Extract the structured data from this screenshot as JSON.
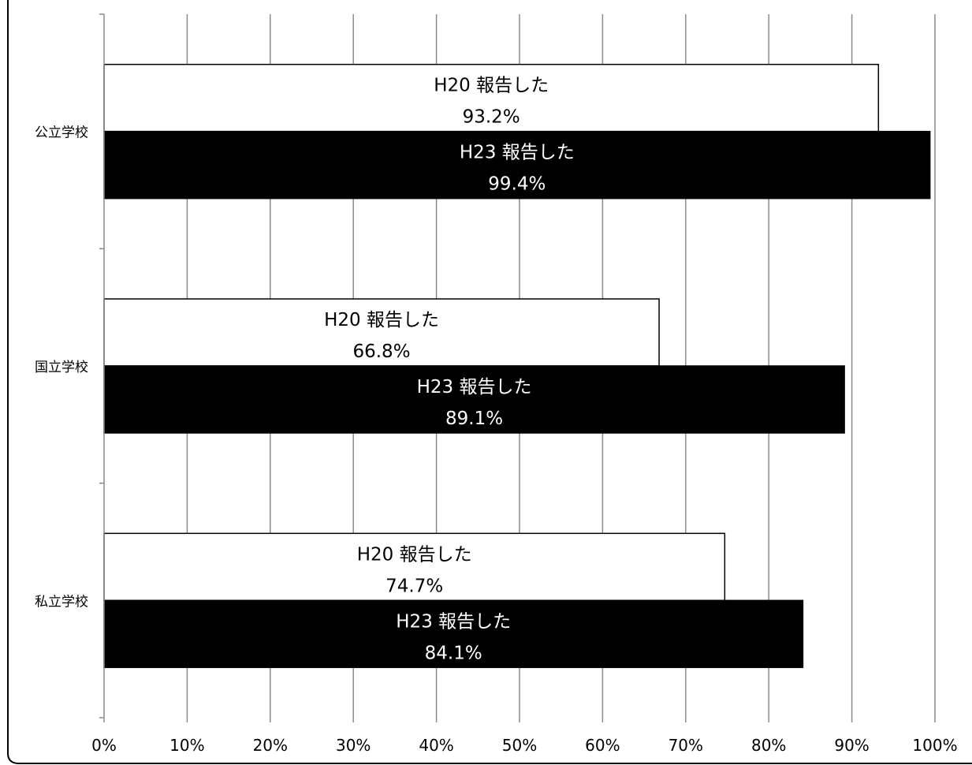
{
  "chart_data": {
    "type": "bar",
    "orientation": "horizontal",
    "categories": [
      "公立学校",
      "国立学校",
      "私立学校"
    ],
    "series": [
      {
        "name": "H20 報告した",
        "values": [
          93.2,
          66.8,
          74.7
        ],
        "labels": [
          "93.2%",
          "66.8%",
          "74.7%"
        ],
        "color": "#ffffff",
        "text_color": "#000000"
      },
      {
        "name": "H23 報告した",
        "values": [
          99.4,
          89.1,
          84.1
        ],
        "labels": [
          "99.4%",
          "89.1%",
          "84.1%"
        ],
        "color": "#000000",
        "text_color": "#ffffff"
      }
    ],
    "x_ticks": [
      "0%",
      "10%",
      "20%",
      "30%",
      "40%",
      "50%",
      "60%",
      "70%",
      "80%",
      "90%",
      "100%"
    ],
    "xlim": [
      0,
      100
    ],
    "grid": true,
    "grid_color": "#8c8c8c",
    "legend": "none",
    "title": "",
    "xlabel": "",
    "ylabel": ""
  }
}
